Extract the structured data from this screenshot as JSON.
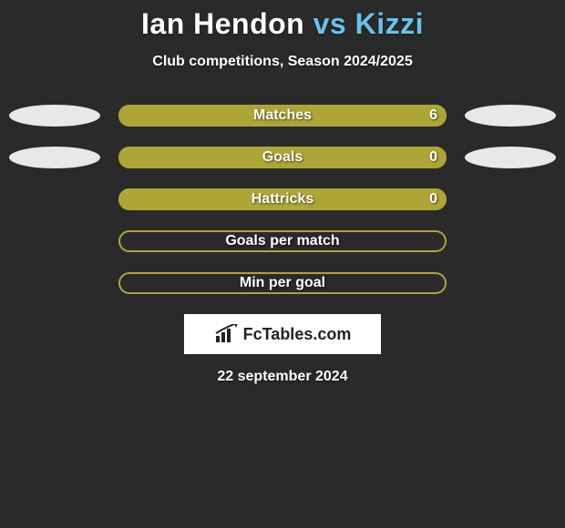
{
  "title": {
    "player1": "Ian Hendon",
    "vs": "vs",
    "player2": "Kizzi",
    "player1_color": "#ffffff",
    "vs_color": "#67c3ec",
    "player2_color": "#67c3ec",
    "fontsize": 32
  },
  "subtitle": "Club competitions, Season 2024/2025",
  "background_color": "#2a2a2a",
  "accent_color": "#aea537",
  "ellipse_color": "#e8e8e8",
  "stats": [
    {
      "label": "Matches",
      "right_value": "6",
      "fill_pct": 100,
      "fill_side": "full",
      "show_left_ellipse": true,
      "show_right_ellipse": true
    },
    {
      "label": "Goals",
      "right_value": "0",
      "fill_pct": 100,
      "fill_side": "full",
      "show_left_ellipse": true,
      "show_right_ellipse": true
    },
    {
      "label": "Hattricks",
      "right_value": "0",
      "fill_pct": 100,
      "fill_side": "full",
      "show_left_ellipse": false,
      "show_right_ellipse": false
    },
    {
      "label": "Goals per match",
      "right_value": "",
      "fill_pct": 0,
      "fill_side": "none",
      "show_left_ellipse": false,
      "show_right_ellipse": false
    },
    {
      "label": "Min per goal",
      "right_value": "",
      "fill_pct": 0,
      "fill_side": "none",
      "show_left_ellipse": false,
      "show_right_ellipse": false
    }
  ],
  "bar_style": {
    "height": 24,
    "border_radius": 12,
    "border_width": 2,
    "gap": 22,
    "label_fontsize": 16,
    "label_color": "#ffffff"
  },
  "logo": {
    "text": "FcTables.com",
    "box_bg": "#ffffff",
    "text_color": "#222222"
  },
  "date": "22 september 2024"
}
